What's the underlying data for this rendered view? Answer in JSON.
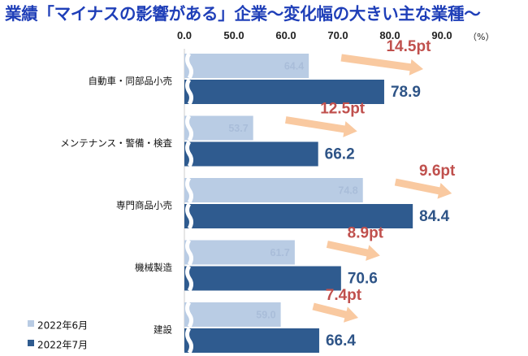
{
  "title": "業績「マイナスの影響がある」企業～変化幅の大きい主な業種～",
  "colors": {
    "june": "#b9cce4",
    "july": "#2f5b8f",
    "arrow": "#f9c9a0",
    "diff": "#c0504d",
    "title": "#1f3fb8"
  },
  "chart_data": {
    "type": "bar",
    "orientation": "horizontal",
    "title": "業績「マイナスの影響がある」企業～変化幅の大きい主な業種～",
    "unit": "（%）",
    "xlim": [
      0,
      90
    ],
    "ticks": [
      "0.0",
      "50.0",
      "60.0",
      "70.0",
      "80.0",
      "90.0"
    ],
    "axis_break": true,
    "categories": [
      "自動車・同部品小売",
      "メンテナンス・警備・検査",
      "専門商品小売",
      "機械製造",
      "建設"
    ],
    "series": [
      {
        "name": "2022年6月",
        "values": [
          64.4,
          53.7,
          74.8,
          61.7,
          59.0
        ],
        "labels": [
          "64.4",
          "53.7",
          "74.8",
          "61.7",
          "59.0"
        ]
      },
      {
        "name": "2022年7月",
        "values": [
          78.9,
          66.2,
          84.4,
          70.6,
          66.4
        ],
        "labels": [
          "78.9",
          "66.2",
          "84.4",
          "70.6",
          "66.4"
        ]
      }
    ],
    "differences": [
      "14.5pt",
      "12.5pt",
      "9.6pt",
      "8.9pt",
      "7.4pt"
    ],
    "legend": {
      "placement": "bottom-left"
    }
  }
}
